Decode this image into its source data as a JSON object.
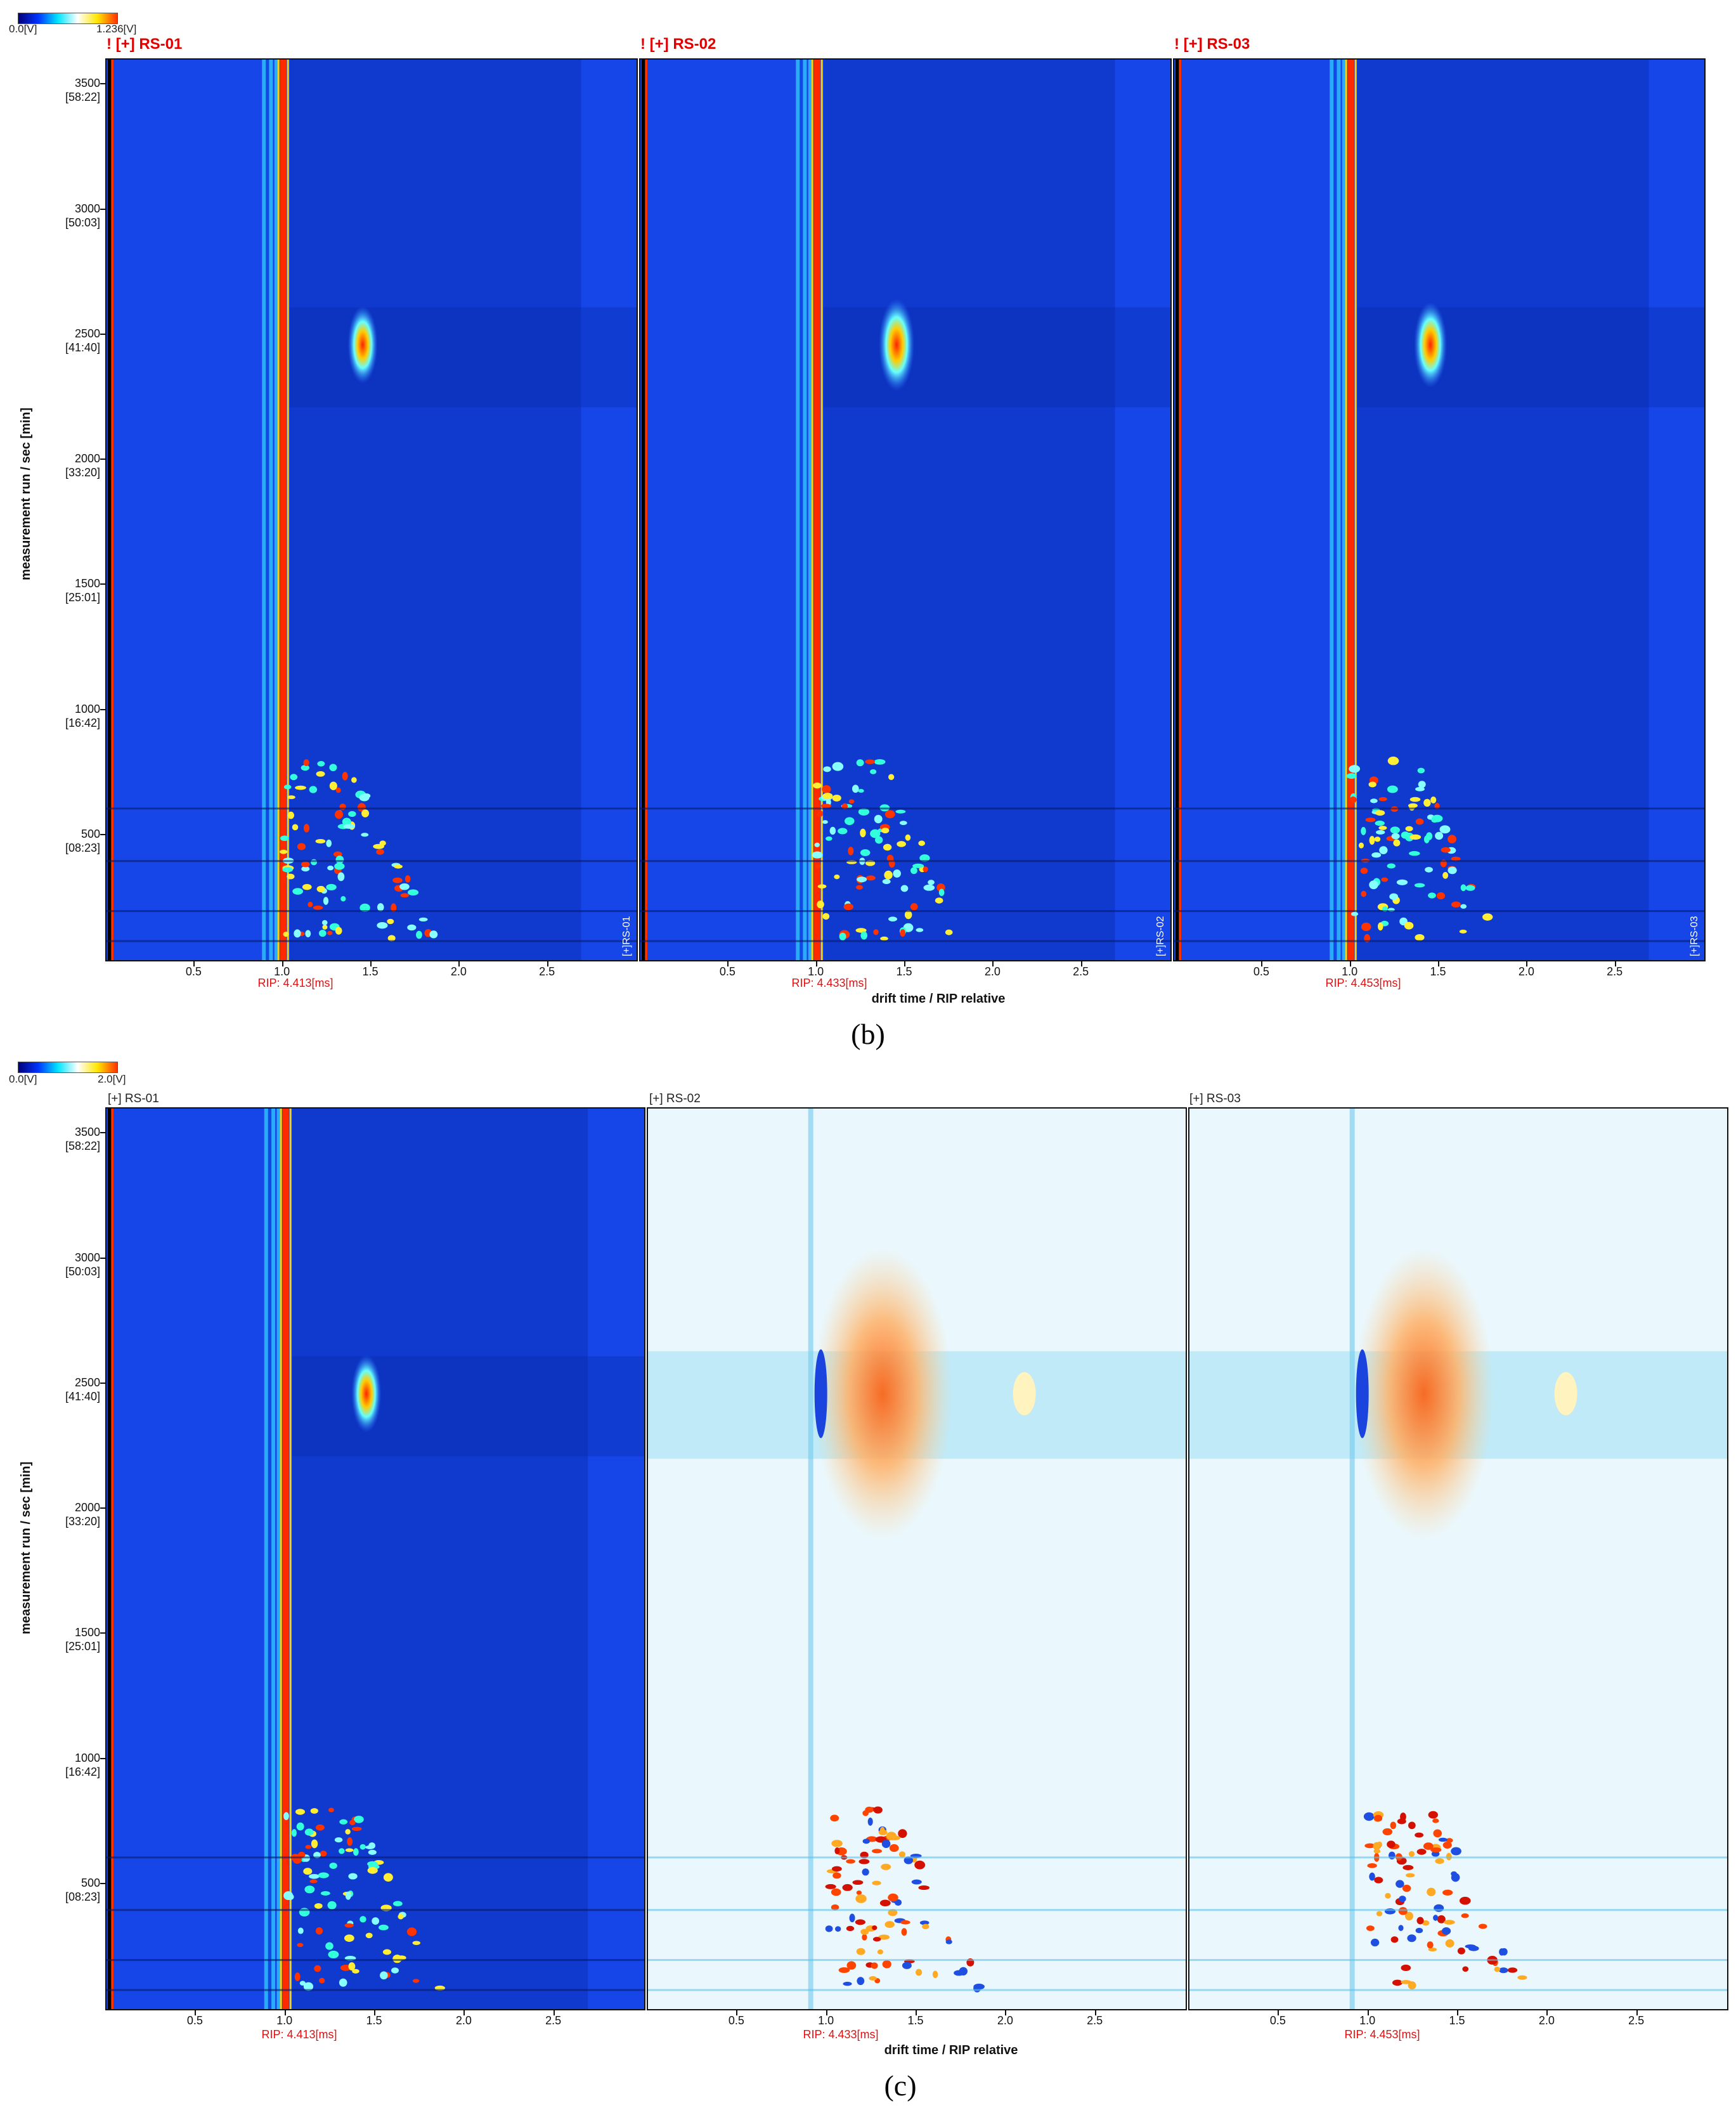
{
  "chart_data": [
    {
      "type": "heatmap",
      "title": "",
      "colorbar": {
        "min_label": "0.0[V]",
        "max_label": "1.236[V]",
        "colors": [
          "#00007a",
          "#0033ff",
          "#00e5ff",
          "#ffffff",
          "#ffe600",
          "#ff3300"
        ]
      },
      "panels": [
        {
          "title": "! [+] RS-01",
          "rip": "RIP: 4.413[ms]",
          "tag": "[+]RS-01",
          "mode": "spectrum",
          "lane_center": 1.0,
          "peak_x": 1.45,
          "peak_y": 2460,
          "peak_strength": 0.55
        },
        {
          "title": "! [+] RS-02",
          "rip": "RIP: 4.433[ms]",
          "tag": "[+]RS-02",
          "mode": "spectrum",
          "lane_center": 1.0,
          "peak_x": 1.45,
          "peak_y": 2460,
          "peak_strength": 1.0
        },
        {
          "title": "! [+] RS-03",
          "rip": "RIP: 4.453[ms]",
          "tag": "[+]RS-03",
          "mode": "spectrum",
          "lane_center": 1.0,
          "peak_x": 1.45,
          "peak_y": 2460,
          "peak_strength": 0.8
        }
      ],
      "xlabel": "drift time / RIP relative",
      "ylabel": "measurement run / sec [min]",
      "x_ticks": [
        "0.5",
        "1.0",
        "1.5",
        "2.0",
        "2.5"
      ],
      "x_tick_values": [
        0.5,
        1.0,
        1.5,
        2.0,
        2.5
      ],
      "y_ticks": [
        {
          "v": 3500,
          "label": "3500",
          "sub": "[58:22]"
        },
        {
          "v": 3000,
          "label": "3000",
          "sub": "[50:03]"
        },
        {
          "v": 2500,
          "label": "2500",
          "sub": "[41:40]"
        },
        {
          "v": 2000,
          "label": "2000",
          "sub": "[33:20]"
        },
        {
          "v": 1500,
          "label": "1500",
          "sub": "[25:01]"
        },
        {
          "v": 1000,
          "label": "1000",
          "sub": "[16:42]"
        },
        {
          "v": 500,
          "label": "500",
          "sub": "[08:23]"
        }
      ],
      "xlim": [
        0.0,
        3.0
      ],
      "ylim": [
        0,
        3600
      ],
      "caption": "(b)"
    },
    {
      "type": "heatmap",
      "title": "",
      "colorbar": {
        "min_label": "0.0[V]",
        "max_label": "2.0[V]",
        "colors": [
          "#00007a",
          "#0033ff",
          "#00e5ff",
          "#ffffff",
          "#ffe600",
          "#ff3300"
        ]
      },
      "panels": [
        {
          "title": "[+] RS-01",
          "rip": "RIP: 4.413[ms]",
          "tag": "",
          "mode": "spectrum",
          "lane_center": 1.0,
          "peak_x": 1.45,
          "peak_y": 2460,
          "peak_strength": 0.55
        },
        {
          "title": "[+] RS-02",
          "rip": "RIP: 4.433[ms]",
          "tag": "",
          "mode": "difference",
          "lane_center": 1.0,
          "peak_x": 1.45,
          "peak_y": 2460,
          "peak_strength": 1.0
        },
        {
          "title": "[+] RS-03",
          "rip": "RIP: 4.453[ms]",
          "tag": "",
          "mode": "difference",
          "lane_center": 1.0,
          "peak_x": 1.45,
          "peak_y": 2460,
          "peak_strength": 1.0
        }
      ],
      "xlabel": "drift time / RIP relative",
      "ylabel": "measurement run / sec [min]",
      "x_ticks": [
        "0.5",
        "1.0",
        "1.5",
        "2.0",
        "2.5"
      ],
      "x_tick_values": [
        0.5,
        1.0,
        1.5,
        2.0,
        2.5
      ],
      "y_ticks": [
        {
          "v": 3500,
          "label": "3500",
          "sub": "[58:22]"
        },
        {
          "v": 3000,
          "label": "3000",
          "sub": "[50:03]"
        },
        {
          "v": 2500,
          "label": "2500",
          "sub": "[41:40]"
        },
        {
          "v": 2000,
          "label": "2000",
          "sub": "[33:20]"
        },
        {
          "v": 1500,
          "label": "1500",
          "sub": "[25:01]"
        },
        {
          "v": 1000,
          "label": "1000",
          "sub": "[16:42]"
        },
        {
          "v": 500,
          "label": "500",
          "sub": "[08:23]"
        }
      ],
      "xlim": [
        0.0,
        3.0
      ],
      "ylim": [
        0,
        3600
      ],
      "caption": "(c)"
    }
  ]
}
